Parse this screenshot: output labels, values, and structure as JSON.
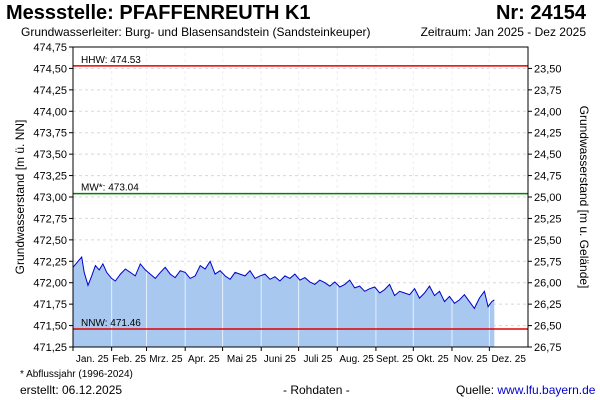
{
  "header": {
    "title": "Messstelle: PFAFFENREUTH K1",
    "number": "Nr: 24154",
    "aquifer": "Grundwasserleiter:  Burg- und Blasensandstein (Sandsteinkeuper)",
    "period": "Zeitraum: Jan 2025 - Dez 2025"
  },
  "footer": {
    "note": "* Abflussjahr (1996-2024)",
    "created": "erstellt:  06.12.2025",
    "raw": "- Rohdaten -",
    "source_label": "Quelle:",
    "source_link": "www.lfu.bayern.de"
  },
  "colors": {
    "hhw": "#e00000",
    "mw": "#008000",
    "nnw": "#e00000",
    "line": "#0000cc",
    "fill": "#a8c8f0",
    "grid": "#d8d8d8"
  },
  "chart_data": {
    "type": "area",
    "ylabel": "Grundwasserstand [m ü. NN]",
    "ylabel_right": "Grundwasserstand [m u. Gelände]",
    "ylim": [
      471.25,
      474.75
    ],
    "right_ylim": [
      26.75,
      23.25
    ],
    "y_ticks": [
      "474,75",
      "474,50",
      "474,25",
      "474,00",
      "473,75",
      "473,50",
      "473,25",
      "473,00",
      "472,75",
      "472,50",
      "472,25",
      "472,00",
      "471,75",
      "471,50",
      "471,25"
    ],
    "right_ticks": [
      "23,50",
      "23,75",
      "24,00",
      "24,25",
      "24,50",
      "24,75",
      "25,00",
      "25,25",
      "25,50",
      "25,75",
      "26,00",
      "26,25",
      "26,50",
      "26,75"
    ],
    "x_ticks": [
      "Jan. 25",
      "Feb. 25",
      "Mrz. 25",
      "Apr. 25",
      "Mai 25",
      "Juni 25",
      "Juli 25",
      "Aug. 25",
      "Sept. 25",
      "Okt. 25",
      "Nov. 25",
      "Dez. 25"
    ],
    "reference_lines": [
      {
        "label": "HHW: 474.53",
        "value": 474.53
      },
      {
        "label": "MW*: 473.04",
        "value": 473.04
      },
      {
        "label": "NNW: 471.46",
        "value": 471.46
      }
    ],
    "x": [
      "2025-01-01",
      "2025-01-05",
      "2025-01-08",
      "2025-01-10",
      "2025-01-13",
      "2025-01-16",
      "2025-01-19",
      "2025-01-22",
      "2025-01-25",
      "2025-01-28",
      "2025-02-01",
      "2025-02-04",
      "2025-02-08",
      "2025-02-12",
      "2025-02-16",
      "2025-02-20",
      "2025-02-24",
      "2025-02-28",
      "2025-03-04",
      "2025-03-08",
      "2025-03-12",
      "2025-03-16",
      "2025-03-20",
      "2025-03-24",
      "2025-03-28",
      "2025-04-01",
      "2025-04-05",
      "2025-04-09",
      "2025-04-13",
      "2025-04-17",
      "2025-04-21",
      "2025-04-25",
      "2025-04-29",
      "2025-05-03",
      "2025-05-07",
      "2025-05-11",
      "2025-05-15",
      "2025-05-19",
      "2025-05-23",
      "2025-05-27",
      "2025-05-31",
      "2025-06-04",
      "2025-06-08",
      "2025-06-12",
      "2025-06-16",
      "2025-06-20",
      "2025-06-24",
      "2025-06-28",
      "2025-07-02",
      "2025-07-06",
      "2025-07-10",
      "2025-07-14",
      "2025-07-18",
      "2025-07-22",
      "2025-07-26",
      "2025-07-30",
      "2025-08-03",
      "2025-08-07",
      "2025-08-11",
      "2025-08-15",
      "2025-08-19",
      "2025-08-23",
      "2025-08-27",
      "2025-08-31",
      "2025-09-04",
      "2025-09-08",
      "2025-09-12",
      "2025-09-16",
      "2025-09-20",
      "2025-09-24",
      "2025-09-28",
      "2025-10-02",
      "2025-10-06",
      "2025-10-10",
      "2025-10-14",
      "2025-10-18",
      "2025-10-22",
      "2025-10-26",
      "2025-10-30",
      "2025-11-03",
      "2025-11-07",
      "2025-11-11",
      "2025-11-15",
      "2025-11-19",
      "2025-11-23",
      "2025-11-27",
      "2025-11-30",
      "2025-12-03",
      "2025-12-05"
    ],
    "values": [
      472.18,
      472.25,
      472.3,
      472.12,
      471.97,
      472.08,
      472.2,
      472.15,
      472.22,
      472.12,
      472.05,
      472.02,
      472.1,
      472.16,
      472.12,
      472.08,
      472.22,
      472.15,
      472.1,
      472.05,
      472.12,
      472.18,
      472.1,
      472.06,
      472.14,
      472.12,
      472.05,
      472.08,
      472.2,
      472.16,
      472.25,
      472.1,
      472.14,
      472.08,
      472.04,
      472.12,
      472.1,
      472.08,
      472.14,
      472.05,
      472.08,
      472.1,
      472.04,
      472.07,
      472.02,
      472.08,
      472.05,
      472.1,
      472.03,
      472.06,
      472.01,
      471.98,
      472.03,
      472.0,
      471.96,
      472.01,
      471.95,
      471.98,
      472.03,
      471.94,
      471.96,
      471.9,
      471.93,
      471.95,
      471.88,
      471.92,
      471.98,
      471.85,
      471.9,
      471.88,
      471.86,
      471.93,
      471.82,
      471.88,
      471.96,
      471.85,
      471.9,
      471.78,
      471.84,
      471.76,
      471.8,
      471.86,
      471.78,
      471.7,
      471.82,
      471.9,
      471.72,
      471.78,
      471.8
    ]
  }
}
